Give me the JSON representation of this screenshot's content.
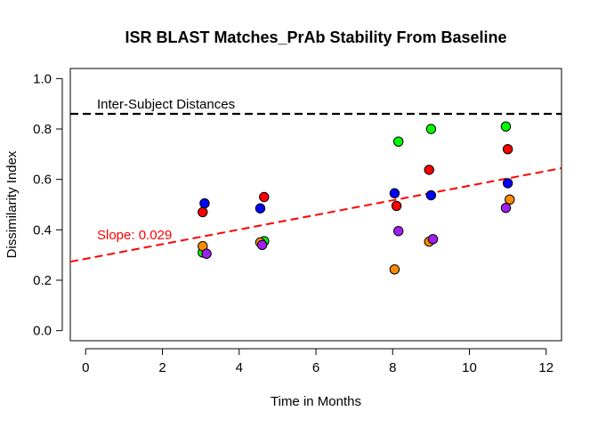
{
  "chart_data": {
    "type": "scatter",
    "title": "ISR BLAST Matches_PrAb Stability From Baseline",
    "xlabel": "Time in Months",
    "ylabel": "Dissimilarity Index",
    "xlim": [
      -0.4,
      12.4
    ],
    "ylim": [
      -0.04,
      1.04
    ],
    "xticks": [
      0,
      2,
      4,
      6,
      8,
      10,
      12
    ],
    "yticks": [
      0.0,
      0.2,
      0.4,
      0.6,
      0.8,
      1.0
    ],
    "xtick_labels": [
      "0",
      "2",
      "4",
      "6",
      "8",
      "10",
      "12"
    ],
    "ytick_labels": [
      "0.0",
      "0.2",
      "0.4",
      "0.6",
      "0.8",
      "1.0"
    ],
    "grid": false,
    "colors": {
      "green": "#00ff00",
      "red": "#ff0000",
      "blue": "#0000ff",
      "orange": "#ff8c00",
      "purple": "#a020f0",
      "regression": "#ff0000",
      "reference": "#000000"
    },
    "series": [
      {
        "color": "green",
        "x": [
          3.05,
          4.65,
          8.15,
          9.0,
          10.95
        ],
        "y": [
          0.31,
          0.355,
          0.75,
          0.8,
          0.81
        ]
      },
      {
        "color": "red",
        "x": [
          3.05,
          4.65,
          8.1,
          8.95,
          11.0
        ],
        "y": [
          0.47,
          0.53,
          0.495,
          0.638,
          0.72
        ]
      },
      {
        "color": "blue",
        "x": [
          3.1,
          4.55,
          8.05,
          9.0,
          11.0
        ],
        "y": [
          0.505,
          0.485,
          0.545,
          0.537,
          0.585
        ]
      },
      {
        "color": "orange",
        "x": [
          3.05,
          4.55,
          8.05,
          8.95,
          11.05
        ],
        "y": [
          0.335,
          0.35,
          0.243,
          0.353,
          0.52
        ]
      },
      {
        "color": "purple",
        "x": [
          3.15,
          4.6,
          8.15,
          9.05,
          10.95
        ],
        "y": [
          0.305,
          0.34,
          0.395,
          0.363,
          0.487
        ]
      }
    ],
    "regression": {
      "intercept": 0.285,
      "slope": 0.029,
      "label": "Slope: 0.029"
    },
    "reference_line": {
      "y": 0.86,
      "label": "Inter-Subject Distances"
    }
  }
}
